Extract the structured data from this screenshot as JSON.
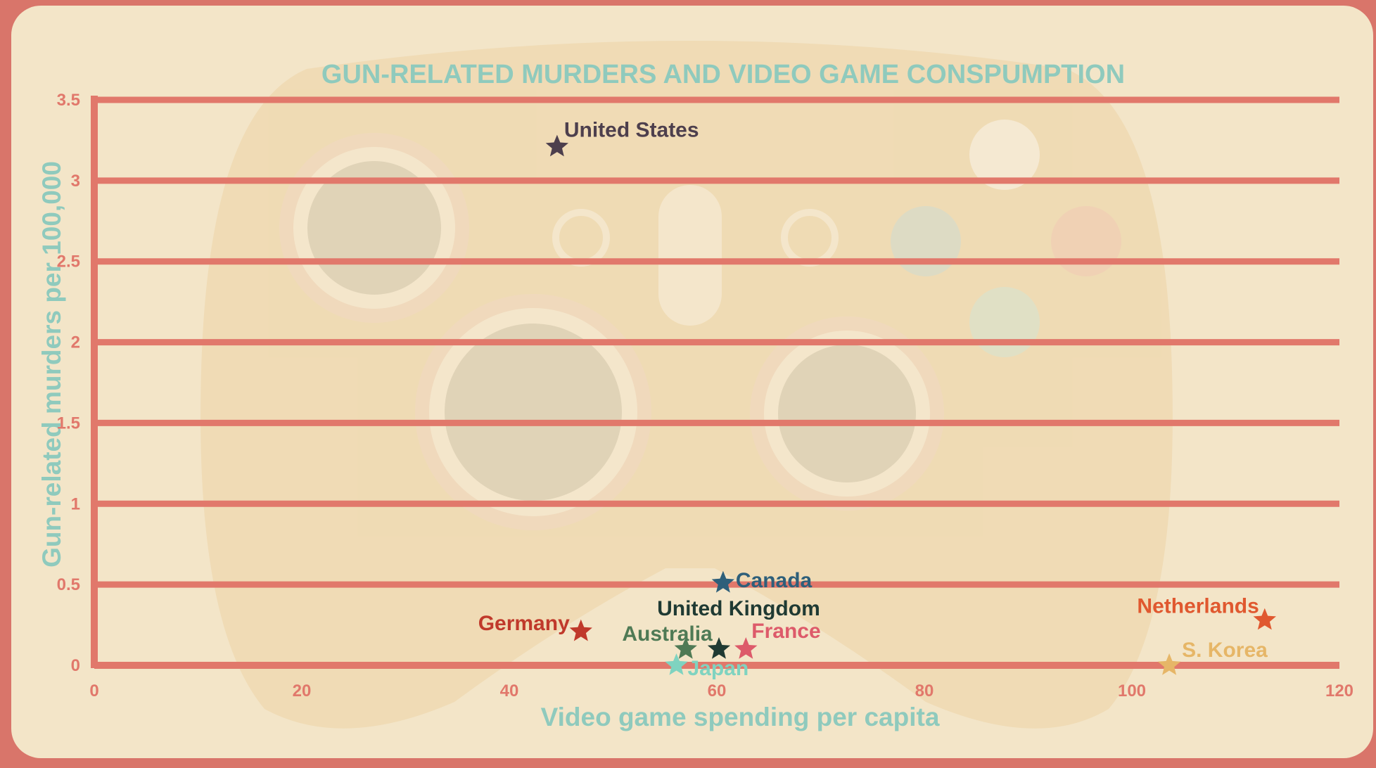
{
  "chart_data": {
    "type": "scatter",
    "title": "GUN-RELATED MURDERS AND VIDEO GAME CONSPUMPTION",
    "xlabel": "Video game spending per capita",
    "ylabel": "Gun-related murders per 100,000",
    "xlim": [
      0,
      120
    ],
    "ylim": [
      0,
      3.5
    ],
    "x_ticks": [
      "0",
      "20",
      "40",
      "60",
      "80",
      "100",
      "120"
    ],
    "y_ticks": [
      "0",
      "0.5",
      "1",
      "1.5",
      "2",
      "2.5",
      "3",
      "3.5"
    ],
    "grid": "horizontal",
    "marker": "star",
    "points": [
      {
        "label": "United States",
        "x": 44.6,
        "y": 3.21,
        "color": "#4d3f4d"
      },
      {
        "label": "Canada",
        "x": 60.6,
        "y": 0.51,
        "color": "#2e5f7a"
      },
      {
        "label": "United Kingdom",
        "x": 60.2,
        "y": 0.1,
        "color": "#1f3a33"
      },
      {
        "label": "Germany",
        "x": 46.9,
        "y": 0.21,
        "color": "#c0392b"
      },
      {
        "label": "Australia",
        "x": 57.0,
        "y": 0.1,
        "color": "#4f7a55"
      },
      {
        "label": "France",
        "x": 62.8,
        "y": 0.1,
        "color": "#dd5a6a"
      },
      {
        "label": "Japan",
        "x": 56.1,
        "y": 0.0,
        "color": "#7fd3c0"
      },
      {
        "label": "Netherlands",
        "x": 112.8,
        "y": 0.28,
        "color": "#e0582f"
      },
      {
        "label": "S. Korea",
        "x": 103.6,
        "y": 0.0,
        "color": "#e6b667"
      }
    ]
  },
  "colors": {
    "background": "#f3e5c8",
    "border": "#d9756a",
    "gridline": "#e1786b",
    "title": "#8fcabd"
  }
}
